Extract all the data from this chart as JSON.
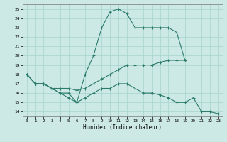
{
  "xlabel": "Humidex (Indice chaleur)",
  "xlim_min": -0.5,
  "xlim_max": 23.5,
  "ylim_min": 13.5,
  "ylim_max": 25.5,
  "xticks": [
    0,
    1,
    2,
    3,
    4,
    5,
    6,
    7,
    8,
    9,
    10,
    11,
    12,
    13,
    14,
    15,
    16,
    17,
    18,
    19,
    20,
    21,
    22,
    23
  ],
  "yticks": [
    14,
    15,
    16,
    17,
    18,
    19,
    20,
    21,
    22,
    23,
    24,
    25
  ],
  "line_color": "#2a7b6a",
  "bg_color": "#cce9e6",
  "grid_color": "#a8d4cf",
  "line1_x": [
    0,
    1,
    2,
    3,
    4,
    5,
    6,
    7,
    8,
    9,
    10,
    11,
    12,
    13,
    14,
    15,
    16,
    17,
    18,
    19
  ],
  "line1_y": [
    18,
    17,
    17,
    16.5,
    16,
    15.5,
    15,
    18,
    20,
    23,
    24.7,
    25,
    24.5,
    23,
    23,
    23,
    23,
    23,
    22.5,
    19.5
  ],
  "line2_x": [
    0,
    1,
    2,
    3,
    4,
    5,
    6,
    7,
    8,
    9,
    10,
    11,
    12,
    13,
    14,
    15,
    16,
    17,
    18,
    19
  ],
  "line2_y": [
    18,
    17,
    17,
    16.5,
    16.5,
    16.5,
    16.3,
    16.5,
    17,
    17.5,
    18,
    18.5,
    19,
    19,
    19,
    19,
    19.3,
    19.5,
    19.5,
    19.5
  ],
  "line3_x": [
    0,
    1,
    2,
    3,
    4,
    5,
    6,
    7,
    8,
    9,
    10,
    11,
    12,
    13,
    14,
    15,
    16,
    17,
    18,
    19,
    20,
    21,
    22,
    23
  ],
  "line3_y": [
    18,
    17,
    17,
    16.5,
    16,
    16,
    15,
    15.5,
    16,
    16.5,
    16.5,
    17,
    17,
    16.5,
    16,
    16,
    15.8,
    15.5,
    15,
    15,
    15.5,
    14,
    14,
    13.8
  ]
}
